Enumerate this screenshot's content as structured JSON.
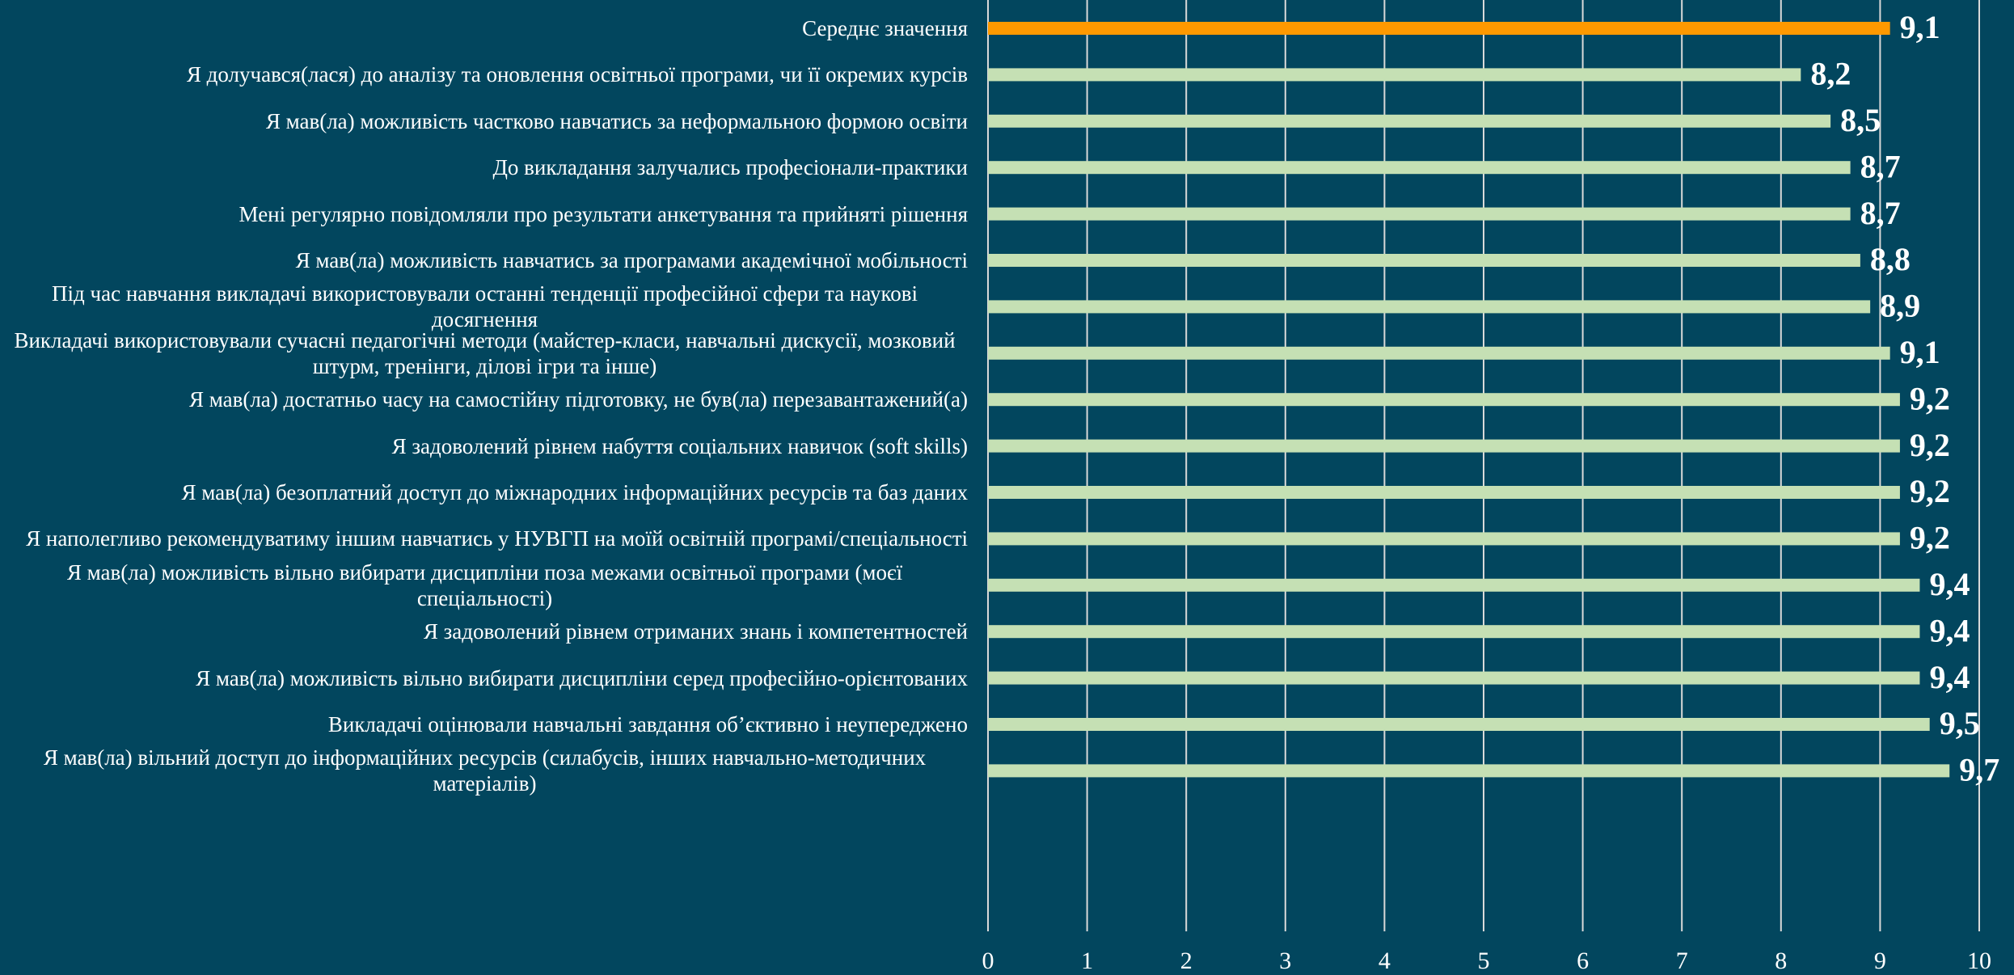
{
  "chart_data": {
    "type": "barh",
    "categories": [
      "Середнє значення",
      "Я долучався(лася) до аналізу та оновлення освітньої програми, чи її окремих курсів",
      "Я мав(ла) можливість частково навчатись за неформальною формою освіти",
      "До викладання залучались професіонали-практики",
      "Мені регулярно повідомляли про результати анкетування та прийняті рішення",
      "Я мав(ла) можливість навчатись за програмами академічної мобільності",
      "Під час навчання викладачі використовували останні тенденції професійної сфери та наукові досягнення",
      "Викладачі використовували сучасні педагогічні методи (майстер-класи, навчальні дискусії, мозковий штурм, тренінги, ділові ігри та інше)",
      "Я мав(ла)  достатньо часу на самостійну підготовку, не був(ла) перезавантажений(а)",
      "Я задоволений рівнем набуття соціальних навичок (soft skills)",
      "Я мав(ла) безоплатний доступ до міжнародних інформаційних ресурсів та баз даних",
      "Я наполегливо рекомендуватиму іншим навчатись у НУВГП на моїй освітній програмі/спеціальності",
      "Я мав(ла)  можливість вільно вибирати дисципліни поза межами освітньої програми (моєї спеціальності)",
      "Я задоволений рівнем отриманих знань і компетентностей",
      "Я мав(ла)  можливість вільно вибирати дисципліни серед професійно-орієнтованих",
      "Викладачі оцінювали навчальні завдання об’єктивно і неупереджено",
      "Я мав(ла) вільний доступ до інформаційних ресурсів (силабусів, інших навчально-методичних матеріалів)"
    ],
    "values": [
      9.1,
      8.2,
      8.5,
      8.7,
      8.7,
      8.8,
      8.9,
      9.1,
      9.2,
      9.2,
      9.2,
      9.2,
      9.4,
      9.4,
      9.4,
      9.5,
      9.7
    ],
    "value_labels": [
      "9,1",
      "8,2",
      "8,5",
      "8,7",
      "8,7",
      "8,8",
      "8,9",
      "9,1",
      "9,2",
      "9,2",
      "9,2",
      "9,2",
      "9,4",
      "9,4",
      "9,4",
      "9,5",
      "9,7"
    ],
    "colors": [
      "#ff9900",
      "#c5e0b4",
      "#c5e0b4",
      "#c5e0b4",
      "#c5e0b4",
      "#c5e0b4",
      "#c5e0b4",
      "#c5e0b4",
      "#c5e0b4",
      "#c5e0b4",
      "#c5e0b4",
      "#c5e0b4",
      "#c5e0b4",
      "#c5e0b4",
      "#c5e0b4",
      "#c5e0b4",
      "#c5e0b4"
    ],
    "xlim": [
      0,
      10
    ],
    "xticks": [
      0,
      1,
      2,
      3,
      4,
      5,
      6,
      7,
      8,
      9,
      10
    ],
    "grid": true
  }
}
